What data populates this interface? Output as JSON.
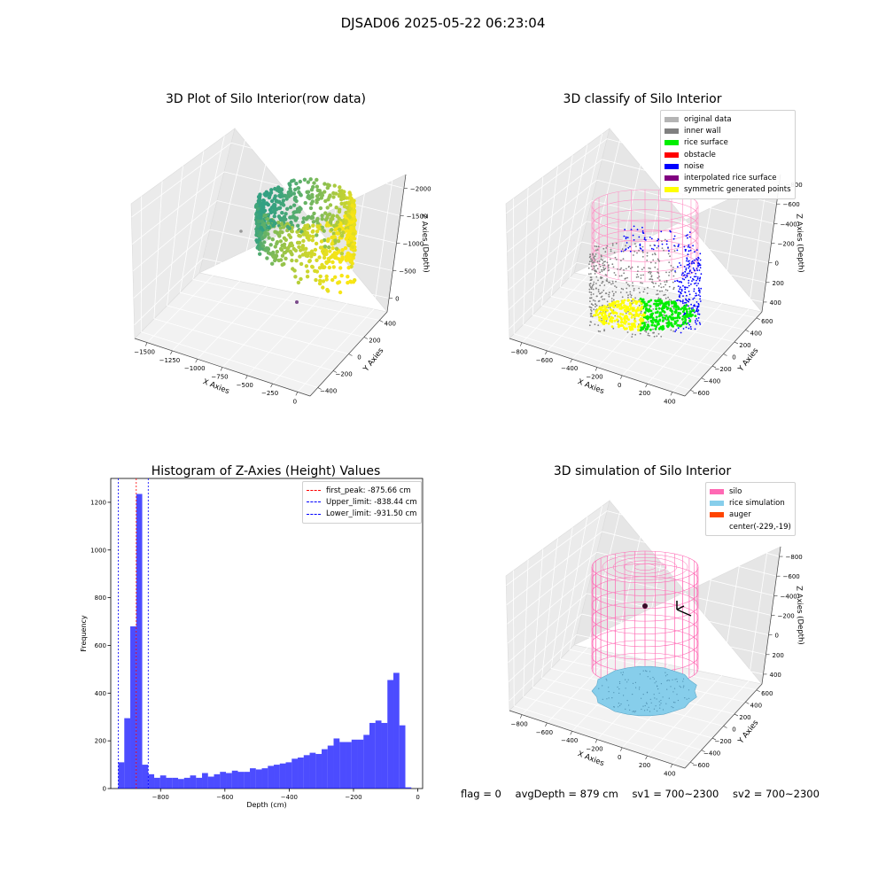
{
  "figure_title": "DJSAD06 2025-05-22 06:23:04",
  "footer": {
    "flag": "flag = 0",
    "avg_depth": "avgDepth = 879 cm",
    "sv1": "sv1 = 700~2300",
    "sv2": "sv2 = 700~2300"
  },
  "chart_data": [
    {
      "id": "raw",
      "type": "scatter",
      "title": "3D Plot of Silo Interior(row data)",
      "xlabel": "X Axies",
      "ylabel": "Y Axies",
      "zlabel": "Z Axies (Depth)",
      "x_ticks": [
        "−1500",
        "−1250",
        "−1000",
        "−750",
        "−500",
        "−250",
        "0"
      ],
      "y_ticks": [
        "−400",
        "−200",
        "0",
        "200",
        "400"
      ],
      "z_ticks": [
        "0",
        "−500",
        "−1000",
        "−1500",
        "−2000"
      ],
      "xlim": [
        -1600,
        100
      ],
      "ylim": [
        -450,
        450
      ],
      "zlim": [
        -2300,
        0
      ],
      "colormap": "viridis"
    },
    {
      "id": "classify",
      "type": "scatter",
      "title": "3D classify of Silo Interior",
      "xlabel": "X Axies",
      "ylabel": "Y Axies",
      "zlabel": "Z Axies (Depth)",
      "x_ticks": [
        "−800",
        "−600",
        "−400",
        "−200",
        "0",
        "200",
        "400"
      ],
      "y_ticks": [
        "−600",
        "−400",
        "−200",
        "0",
        "200",
        "400",
        "600"
      ],
      "z_ticks": [
        "400",
        "200",
        "0",
        "−200",
        "−400",
        "−600",
        "−800"
      ],
      "legend": [
        {
          "label": "original data",
          "color": "#b4b4b4"
        },
        {
          "label": "inner wall",
          "color": "#808080"
        },
        {
          "label": "rice surface",
          "color": "#00ee00"
        },
        {
          "label": "obstacle",
          "color": "#ff0000"
        },
        {
          "label": "noise",
          "color": "#0000ff"
        },
        {
          "label": "interpolated rice surface",
          "color": "#800080"
        },
        {
          "label": "symmetric generated points",
          "color": "#ffff00"
        }
      ]
    },
    {
      "id": "histogram",
      "type": "bar",
      "title": "Histogram of Z-Axies (Height) Values",
      "xlabel": "Depth (cm)",
      "ylabel": "Frequency",
      "xlim": [
        -955,
        15
      ],
      "ylim": [
        0,
        1300
      ],
      "x_ticks": [
        -800,
        -600,
        -400,
        -200,
        0
      ],
      "x_tick_labels": [
        "−800",
        "−600",
        "−400",
        "−200",
        "0"
      ],
      "y_ticks": [
        0,
        200,
        400,
        600,
        800,
        1000,
        1200
      ],
      "y_tick_labels": [
        "0",
        "200",
        "400",
        "600",
        "800",
        "1000",
        "1200"
      ],
      "bin_start": -931.5,
      "bin_width": 18.6,
      "values": [
        110,
        295,
        680,
        1235,
        100,
        60,
        45,
        55,
        45,
        45,
        40,
        45,
        55,
        45,
        65,
        50,
        60,
        70,
        65,
        75,
        70,
        70,
        85,
        80,
        85,
        95,
        100,
        105,
        110,
        125,
        130,
        140,
        150,
        145,
        165,
        180,
        210,
        195,
        195,
        205,
        205,
        225,
        275,
        285,
        275,
        455,
        485,
        265,
        5
      ],
      "bar_color": "#0000ff",
      "bar_alpha": 0.7,
      "vlines": [
        {
          "x": -875.66,
          "color": "#ff0000",
          "label": "first_peak: -875.66 cm"
        },
        {
          "x": -838.44,
          "color": "#0000ff",
          "label": "Upper_limit: -838.44 cm"
        },
        {
          "x": -931.5,
          "color": "#0000ff",
          "label": "Lower_limit: -931.50 cm"
        }
      ]
    },
    {
      "id": "simulation",
      "type": "scatter",
      "title": "3D simulation of Silo Interior",
      "xlabel": "X Axies",
      "ylabel": "Y Axies",
      "zlabel": "Z Axies (Depth)",
      "x_ticks": [
        "−800",
        "−600",
        "−400",
        "−200",
        "0",
        "200",
        "400"
      ],
      "y_ticks": [
        "−600",
        "−400",
        "−200",
        "0",
        "200",
        "400",
        "600"
      ],
      "z_ticks": [
        "400",
        "200",
        "0",
        "−200",
        "−400",
        "−600",
        "−800"
      ],
      "legend": [
        {
          "label": "silo",
          "color": "#ff69b4"
        },
        {
          "label": "rice simulation",
          "color": "#87ceeb"
        },
        {
          "label": "auger",
          "color": "#ff4500"
        },
        {
          "label": "center(-229,-19)",
          "color": ""
        }
      ]
    }
  ]
}
